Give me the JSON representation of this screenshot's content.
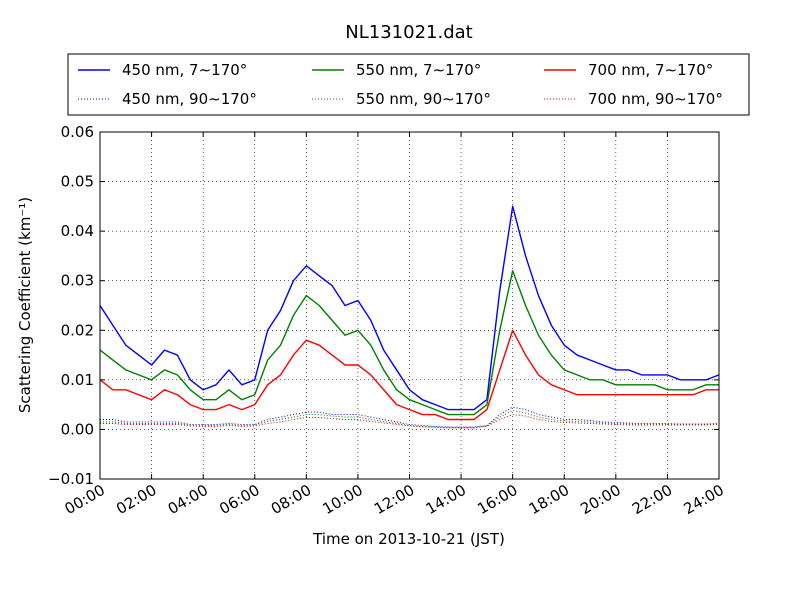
{
  "chart_data": {
    "type": "line",
    "title": "NL131021.dat",
    "xlabel": "Time on 2013-10-21 (JST)",
    "ylabel": "Scattering Coefficient (km⁻¹)",
    "xlim": [
      "00:00",
      "24:00"
    ],
    "ylim": [
      -0.01,
      0.06
    ],
    "x_ticks": [
      "00:00",
      "02:00",
      "04:00",
      "06:00",
      "08:00",
      "10:00",
      "12:00",
      "14:00",
      "16:00",
      "18:00",
      "20:00",
      "22:00",
      "24:00"
    ],
    "y_ticks": [
      "−0.01",
      "0.00",
      "0.01",
      "0.02",
      "0.03",
      "0.04",
      "0.05",
      "0.06"
    ],
    "grid": true,
    "legend_position": "top",
    "x": [
      "00:00",
      "00:30",
      "01:00",
      "01:30",
      "02:00",
      "02:30",
      "03:00",
      "03:30",
      "04:00",
      "04:30",
      "05:00",
      "05:30",
      "06:00",
      "06:30",
      "07:00",
      "07:30",
      "08:00",
      "08:30",
      "09:00",
      "09:30",
      "10:00",
      "10:30",
      "11:00",
      "11:30",
      "12:00",
      "12:30",
      "13:00",
      "13:30",
      "14:00",
      "14:30",
      "15:00",
      "15:30",
      "16:00",
      "16:30",
      "17:00",
      "17:30",
      "18:00",
      "18:30",
      "19:00",
      "19:30",
      "20:00",
      "20:30",
      "21:00",
      "21:30",
      "22:00",
      "22:30",
      "23:00",
      "23:30",
      "24:00"
    ],
    "series": [
      {
        "name": "450 nm, 7∼170°",
        "color": "#0000ff",
        "style": "solid",
        "values": [
          0.025,
          0.021,
          0.017,
          0.015,
          0.013,
          0.016,
          0.015,
          0.01,
          0.008,
          0.009,
          0.012,
          0.009,
          0.01,
          0.02,
          0.024,
          0.03,
          0.033,
          0.031,
          0.029,
          0.025,
          0.026,
          0.022,
          0.016,
          0.012,
          0.008,
          0.006,
          0.005,
          0.004,
          0.004,
          0.004,
          0.006,
          0.028,
          0.045,
          0.035,
          0.027,
          0.021,
          0.017,
          0.015,
          0.014,
          0.013,
          0.012,
          0.012,
          0.011,
          0.011,
          0.011,
          0.01,
          0.01,
          0.01,
          0.011
        ]
      },
      {
        "name": "450 nm, 90∼170°",
        "color": "#0000ff",
        "style": "dotted",
        "values": [
          0.002,
          0.002,
          0.0015,
          0.0015,
          0.0015,
          0.0015,
          0.0015,
          0.001,
          0.001,
          0.001,
          0.0012,
          0.001,
          0.001,
          0.002,
          0.0025,
          0.003,
          0.0035,
          0.0035,
          0.003,
          0.003,
          0.003,
          0.0025,
          0.002,
          0.0015,
          0.001,
          0.0008,
          0.0006,
          0.0005,
          0.0005,
          0.0005,
          0.0008,
          0.003,
          0.0045,
          0.004,
          0.003,
          0.0025,
          0.002,
          0.002,
          0.0018,
          0.0015,
          0.0014,
          0.0013,
          0.0012,
          0.0012,
          0.0012,
          0.0011,
          0.0011,
          0.0011,
          0.0012
        ]
      },
      {
        "name": "550 nm, 7∼170°",
        "color": "#008000",
        "style": "solid",
        "values": [
          0.016,
          0.014,
          0.012,
          0.011,
          0.01,
          0.012,
          0.011,
          0.008,
          0.006,
          0.006,
          0.008,
          0.006,
          0.007,
          0.014,
          0.017,
          0.023,
          0.027,
          0.025,
          0.022,
          0.019,
          0.02,
          0.017,
          0.012,
          0.008,
          0.006,
          0.005,
          0.004,
          0.003,
          0.003,
          0.003,
          0.005,
          0.02,
          0.032,
          0.025,
          0.019,
          0.015,
          0.012,
          0.011,
          0.01,
          0.01,
          0.009,
          0.009,
          0.009,
          0.009,
          0.008,
          0.008,
          0.008,
          0.009,
          0.009
        ]
      },
      {
        "name": "550 nm, 90∼170°",
        "color": "#008000",
        "style": "dotted",
        "values": [
          0.0015,
          0.0015,
          0.0012,
          0.0012,
          0.0012,
          0.0012,
          0.0012,
          0.0009,
          0.0008,
          0.0008,
          0.001,
          0.0008,
          0.0009,
          0.0016,
          0.002,
          0.0025,
          0.003,
          0.003,
          0.0027,
          0.0025,
          0.0025,
          0.002,
          0.0016,
          0.0012,
          0.0008,
          0.0006,
          0.0005,
          0.0004,
          0.0004,
          0.0004,
          0.0007,
          0.0025,
          0.0038,
          0.0033,
          0.0025,
          0.002,
          0.0017,
          0.0016,
          0.0015,
          0.0013,
          0.0012,
          0.0011,
          0.0011,
          0.001,
          0.001,
          0.001,
          0.001,
          0.001,
          0.0011
        ]
      },
      {
        "name": "700 nm, 7∼170°",
        "color": "#ff0000",
        "style": "solid",
        "values": [
          0.01,
          0.008,
          0.008,
          0.007,
          0.006,
          0.008,
          0.007,
          0.005,
          0.004,
          0.004,
          0.005,
          0.004,
          0.005,
          0.009,
          0.011,
          0.015,
          0.018,
          0.017,
          0.015,
          0.013,
          0.013,
          0.011,
          0.008,
          0.005,
          0.004,
          0.003,
          0.003,
          0.002,
          0.002,
          0.002,
          0.004,
          0.012,
          0.02,
          0.015,
          0.011,
          0.009,
          0.008,
          0.007,
          0.007,
          0.007,
          0.007,
          0.007,
          0.007,
          0.007,
          0.007,
          0.007,
          0.007,
          0.008,
          0.008
        ]
      },
      {
        "name": "700 nm, 90∼170°",
        "color": "#ff0000",
        "style": "dotted",
        "values": [
          0.0012,
          0.0012,
          0.001,
          0.001,
          0.001,
          0.001,
          0.001,
          0.0007,
          0.0006,
          0.0006,
          0.0008,
          0.0006,
          0.0007,
          0.0012,
          0.0015,
          0.002,
          0.0024,
          0.0024,
          0.0022,
          0.002,
          0.002,
          0.0016,
          0.0013,
          0.001,
          0.0007,
          0.0005,
          0.0004,
          0.0003,
          0.0003,
          0.0003,
          0.0006,
          0.002,
          0.003,
          0.0027,
          0.002,
          0.0016,
          0.0014,
          0.0013,
          0.0012,
          0.0011,
          0.001,
          0.0009,
          0.0009,
          0.0009,
          0.0009,
          0.0009,
          0.0009,
          0.0009,
          0.001
        ]
      }
    ]
  }
}
